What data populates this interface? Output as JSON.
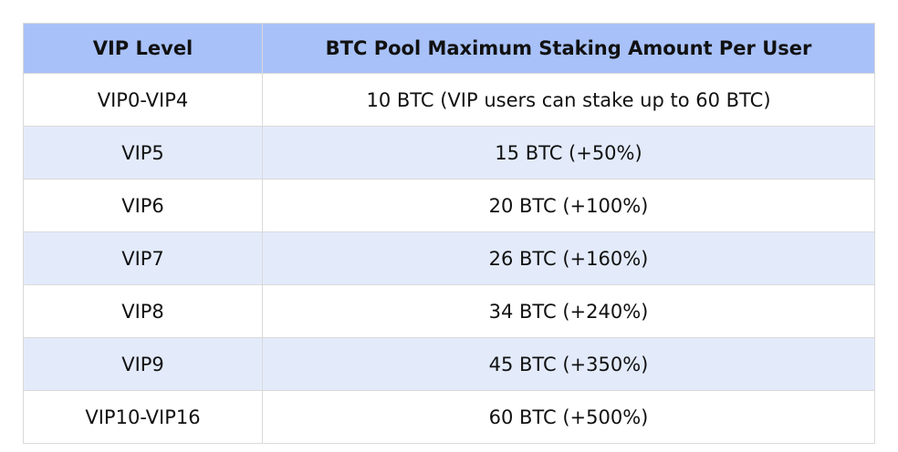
{
  "table": {
    "header": [
      "VIP Level",
      "BTC Pool Maximum Staking Amount Per User"
    ],
    "rows": [
      [
        "VIP0-VIP4",
        "10 BTC (VIP users can stake up to 60 BTC)"
      ],
      [
        "VIP5",
        "15 BTC (+50%)"
      ],
      [
        "VIP6",
        "20 BTC (+100%)"
      ],
      [
        "VIP7",
        "26 BTC (+160%)"
      ],
      [
        "VIP8",
        "34 BTC (+240%)"
      ],
      [
        "VIP9",
        "45 BTC (+350%)"
      ],
      [
        "VIP10-VIP16",
        "60 BTC (+500%)"
      ]
    ]
  }
}
